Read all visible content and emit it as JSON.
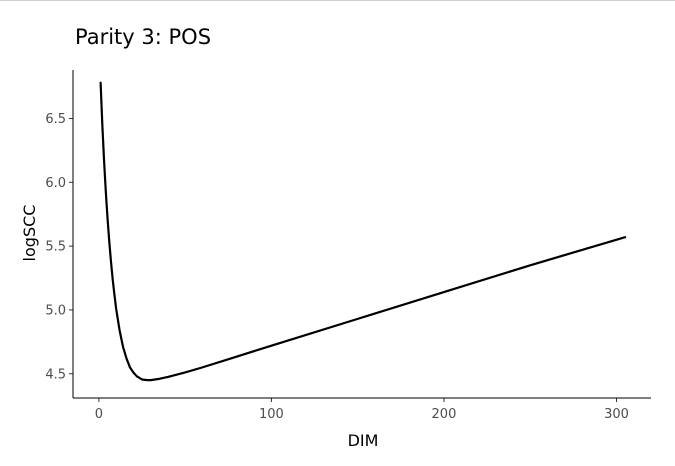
{
  "chart_data": {
    "type": "line",
    "title": "Parity 3: POS",
    "xlabel": "DIM",
    "ylabel": "logSCC",
    "xlim": [
      -15,
      320
    ],
    "ylim": [
      4.31,
      6.88
    ],
    "xticks": [
      0,
      100,
      200,
      300
    ],
    "yticks": [
      4.5,
      5.0,
      5.5,
      6.0,
      6.5
    ],
    "ytick_labels": [
      "4.5",
      "5.0",
      "5.5",
      "6.0",
      "6.5"
    ],
    "grid": false,
    "legend": "none",
    "line_color": "#000000",
    "series": [
      {
        "x": [
          1,
          2,
          3,
          4,
          5,
          6,
          7,
          8,
          9,
          10,
          12,
          14,
          16,
          18,
          20,
          22,
          25,
          28,
          30,
          35,
          40,
          50,
          60,
          80,
          100,
          150,
          200,
          250,
          305
        ],
        "y": [
          6.78,
          6.45,
          6.17,
          5.93,
          5.72,
          5.54,
          5.38,
          5.24,
          5.12,
          5.01,
          4.84,
          4.71,
          4.62,
          4.55,
          4.51,
          4.48,
          4.455,
          4.45,
          4.45,
          4.46,
          4.475,
          4.51,
          4.55,
          4.635,
          4.72,
          4.93,
          5.14,
          5.35,
          5.57
        ]
      }
    ]
  }
}
